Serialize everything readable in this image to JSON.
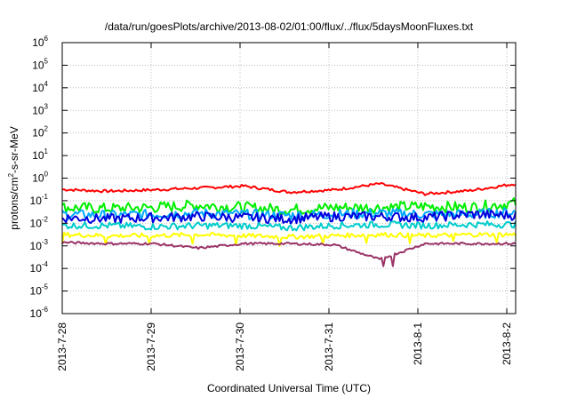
{
  "chart_data": {
    "type": "line",
    "title": "/data/run/goesPlots/archive/2013-08-02/01:00/flux/../flux/5daysMoonFluxes.txt",
    "xlabel": "Coordinated Universal Time (UTC)",
    "ylabel_parts": {
      "base": "protons/cm",
      "sup": "2",
      "rest": "-s-sr-MeV"
    },
    "yscale": "log",
    "ylim_exp": [
      -6,
      6
    ],
    "y_ticks": [
      {
        "base": "10",
        "exp": "-6"
      },
      {
        "base": "10",
        "exp": "-5"
      },
      {
        "base": "10",
        "exp": "-4"
      },
      {
        "base": "10",
        "exp": "-3"
      },
      {
        "base": "10",
        "exp": "-2"
      },
      {
        "base": "10",
        "exp": "-1"
      },
      {
        "base": "10",
        "exp": "0"
      },
      {
        "base": "10",
        "exp": "1"
      },
      {
        "base": "10",
        "exp": "2"
      },
      {
        "base": "10",
        "exp": "3"
      },
      {
        "base": "10",
        "exp": "4"
      },
      {
        "base": "10",
        "exp": "5"
      },
      {
        "base": "10",
        "exp": "6"
      }
    ],
    "x_ticks": [
      "2013-7-28",
      "2013-7-29",
      "2013-7-30",
      "2013-7-31",
      "2013-8-1",
      "2013-8-2"
    ],
    "x_range_days": [
      0,
      5.1
    ],
    "grid": true,
    "legend": "none",
    "series": [
      {
        "color": "#ff0000",
        "level": -0.6,
        "noise": 0.1,
        "values": [
          -0.5,
          -0.58,
          -0.52,
          -0.44,
          -0.35,
          -0.62,
          -0.52,
          -0.25,
          -0.7,
          -0.55,
          -0.25
        ]
      },
      {
        "color": "#00ee00",
        "level": -1.3,
        "noise": 0.25,
        "values": [
          -1.3,
          -1.35,
          -1.3,
          -1.2,
          -1.3,
          -1.4,
          -1.3,
          -1.3,
          -1.25,
          -1.3,
          -1.1
        ]
      },
      {
        "color": "#00aaff",
        "level": -1.6,
        "noise": 0.22,
        "values": [
          -1.6,
          -1.65,
          -1.6,
          -1.55,
          -1.6,
          -1.65,
          -1.6,
          -1.55,
          -1.6,
          -1.6,
          -1.5
        ]
      },
      {
        "color": "#0000dd",
        "level": -1.75,
        "noise": 0.22,
        "values": [
          -1.75,
          -1.8,
          -1.75,
          -1.7,
          -1.75,
          -1.8,
          -1.7,
          -1.7,
          -1.75,
          -1.6,
          -1.65
        ]
      },
      {
        "color": "#00cccc",
        "level": -2.1,
        "noise": 0.15,
        "values": [
          -2.1,
          -2.1,
          -2.15,
          -2.1,
          -2.1,
          -2.2,
          -2.1,
          -2.05,
          -2.1,
          -2.05,
          -2.05
        ]
      },
      {
        "color": "#ffff00",
        "level": -2.55,
        "noise": 0.1,
        "values": [
          -2.5,
          -2.55,
          -2.55,
          -2.5,
          -2.55,
          -2.6,
          -2.55,
          -2.5,
          -2.55,
          -2.5,
          -2.5
        ]
      },
      {
        "color": "#993366",
        "level": -2.9,
        "noise": 0.05,
        "values": [
          -2.85,
          -2.9,
          -2.9,
          -3.1,
          -2.9,
          -2.9,
          -2.95,
          -3.6,
          -2.9,
          -2.9,
          -2.9
        ]
      }
    ]
  }
}
